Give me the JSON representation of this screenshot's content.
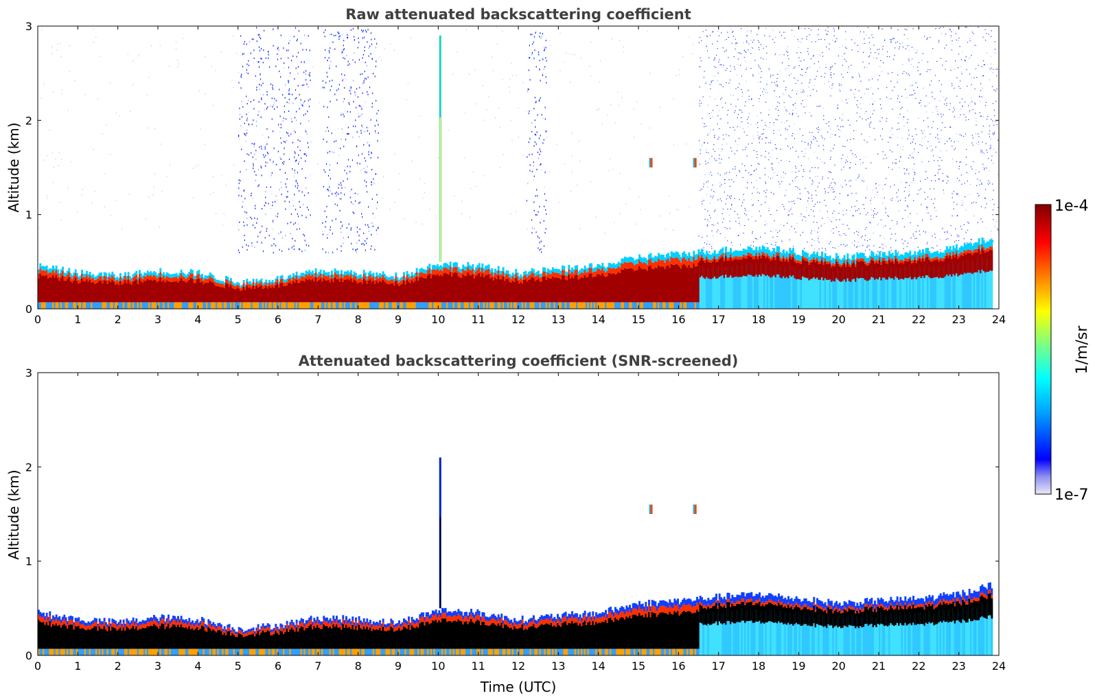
{
  "chart_data": [
    {
      "type": "heatmap",
      "title": "Raw attenuated backscattering coefficient",
      "xlabel": "",
      "ylabel": "Altitude (km)",
      "xlim": [
        0,
        24
      ],
      "ylim": [
        0,
        3
      ],
      "xticks": [
        "0",
        "1",
        "2",
        "3",
        "4",
        "5",
        "6",
        "7",
        "8",
        "9",
        "10",
        "11",
        "12",
        "13",
        "14",
        "15",
        "16",
        "17",
        "18",
        "19",
        "20",
        "21",
        "22",
        "23",
        "24"
      ],
      "yticks": [
        "0",
        "1",
        "2",
        "3"
      ],
      "boundary_layer_top_km": {
        "x": [
          0,
          1,
          2,
          3,
          4,
          5,
          6,
          7,
          8,
          9,
          10,
          11,
          12,
          13,
          14,
          15,
          16,
          17,
          18,
          19,
          20,
          21,
          22,
          23,
          23.8
        ],
        "y": [
          0.45,
          0.38,
          0.35,
          0.4,
          0.38,
          0.28,
          0.32,
          0.4,
          0.38,
          0.35,
          0.48,
          0.45,
          0.38,
          0.42,
          0.45,
          0.55,
          0.58,
          0.62,
          0.65,
          0.6,
          0.55,
          0.58,
          0.6,
          0.65,
          0.75
        ]
      },
      "features": [
        {
          "name": "plume",
          "x": 10.05,
          "y": [
            0.5,
            2.9
          ]
        },
        {
          "name": "cloud",
          "x": 15.3,
          "y": [
            1.5,
            1.6
          ]
        },
        {
          "name": "cloud",
          "x": 16.4,
          "y": [
            1.5,
            1.6
          ]
        }
      ],
      "noise_bands": [
        [
          5,
          6.8
        ],
        [
          7.1,
          8.5
        ],
        [
          12.2,
          12.7
        ],
        [
          16.5,
          24
        ]
      ]
    },
    {
      "type": "heatmap",
      "title": "Attenuated backscattering coefficient (SNR-screened)",
      "xlabel": "Time (UTC)",
      "ylabel": "Altitude (km)",
      "xlim": [
        0,
        24
      ],
      "ylim": [
        0,
        3
      ],
      "xticks": [
        "0",
        "1",
        "2",
        "3",
        "4",
        "5",
        "6",
        "7",
        "8",
        "9",
        "10",
        "11",
        "12",
        "13",
        "14",
        "15",
        "16",
        "17",
        "18",
        "19",
        "20",
        "21",
        "22",
        "23",
        "24"
      ],
      "yticks": [
        "0",
        "1",
        "2",
        "3"
      ],
      "boundary_layer_top_km": {
        "x": [
          0,
          1,
          2,
          3,
          4,
          5,
          6,
          7,
          8,
          9,
          10,
          11,
          12,
          13,
          14,
          15,
          16,
          17,
          18,
          19,
          20,
          21,
          22,
          23,
          23.8
        ],
        "y": [
          0.45,
          0.38,
          0.35,
          0.4,
          0.38,
          0.28,
          0.32,
          0.4,
          0.38,
          0.35,
          0.48,
          0.45,
          0.38,
          0.42,
          0.45,
          0.55,
          0.58,
          0.62,
          0.65,
          0.6,
          0.55,
          0.58,
          0.6,
          0.65,
          0.75
        ]
      },
      "features": [
        {
          "name": "plume",
          "x": 10.05,
          "y": [
            0.5,
            2.1
          ]
        },
        {
          "name": "cloud",
          "x": 15.3,
          "y": [
            1.5,
            1.6
          ]
        },
        {
          "name": "cloud",
          "x": 16.4,
          "y": [
            1.5,
            1.6
          ]
        }
      ]
    }
  ],
  "colorbar": {
    "label": "1/m/sr",
    "max_label": "1e-4",
    "min_label": "1e-7",
    "range": [
      1e-07,
      0.0001
    ],
    "colormap": [
      "#e8e8f8",
      "#0000ff",
      "#00a0ff",
      "#00ffff",
      "#7fff7f",
      "#ffff00",
      "#ff8000",
      "#ff0000",
      "#800000"
    ]
  }
}
